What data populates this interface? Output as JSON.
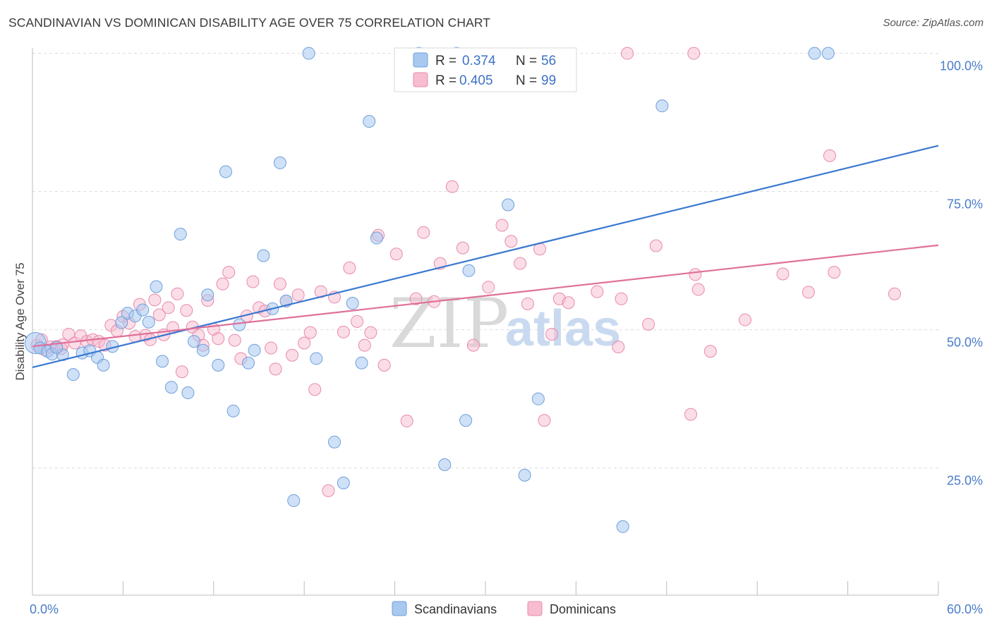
{
  "header": {
    "title": "SCANDINAVIAN VS DOMINICAN DISABILITY AGE OVER 75 CORRELATION CHART",
    "source": "Source: ZipAtlas.com"
  },
  "watermark": {
    "part1": "ZIP",
    "part2": "atlas"
  },
  "legend": {
    "r_label": "R =",
    "n_label": "N =",
    "rows": [
      {
        "r": "0.374",
        "n": "56"
      },
      {
        "r": "0.405",
        "n": "99"
      }
    ]
  },
  "chart_data": {
    "type": "scatter",
    "title": "SCANDINAVIAN VS DOMINICAN DISABILITY AGE OVER 75 CORRELATION CHART",
    "xlabel": "",
    "ylabel": "Disability Age Over 75",
    "xlim": [
      0,
      60
    ],
    "ylim": [
      2,
      102
    ],
    "x_tick_labels": [
      "0.0%",
      "60.0%"
    ],
    "y_ticks": [
      25,
      50,
      75,
      100
    ],
    "y_tick_labels": [
      "25.0%",
      "50.0%",
      "75.0%",
      "100.0%"
    ],
    "grid": true,
    "legend_position": "top-center",
    "series": [
      {
        "name": "Scandinavians",
        "color": "#a8c8f0",
        "edge": "#6f9fdc",
        "line_color": "#3a78d0",
        "r": 0.374,
        "n": 56,
        "trend": {
          "x": [
            0,
            60
          ],
          "y": [
            43.2,
            83.3
          ]
        },
        "points": [
          [
            0.2,
            47.6
          ],
          [
            0.5,
            46.7
          ],
          [
            1.0,
            46.1
          ],
          [
            1.3,
            45.6
          ],
          [
            2.0,
            45.5
          ],
          [
            2.7,
            41.9
          ],
          [
            3.3,
            45.8
          ],
          [
            3.8,
            46.2
          ],
          [
            4.3,
            45.0
          ],
          [
            4.7,
            43.6
          ],
          [
            5.3,
            47.0
          ],
          [
            5.9,
            51.3
          ],
          [
            6.3,
            53.0
          ],
          [
            6.8,
            52.5
          ],
          [
            7.3,
            53.6
          ],
          [
            7.7,
            51.4
          ],
          [
            8.2,
            57.8
          ],
          [
            8.6,
            44.3
          ],
          [
            9.2,
            39.6
          ],
          [
            9.8,
            67.3
          ],
          [
            10.3,
            38.6
          ],
          [
            10.7,
            47.9
          ],
          [
            11.3,
            46.3
          ],
          [
            11.6,
            56.3
          ],
          [
            12.3,
            43.6
          ],
          [
            12.8,
            78.6
          ],
          [
            13.3,
            35.3
          ],
          [
            13.7,
            50.9
          ],
          [
            14.3,
            44.0
          ],
          [
            14.7,
            46.3
          ],
          [
            15.3,
            63.4
          ],
          [
            15.9,
            53.8
          ],
          [
            16.4,
            80.2
          ],
          [
            16.8,
            55.2
          ],
          [
            17.3,
            19.1
          ],
          [
            18.3,
            100.0
          ],
          [
            18.8,
            44.8
          ],
          [
            20.0,
            29.7
          ],
          [
            20.6,
            22.3
          ],
          [
            21.2,
            54.8
          ],
          [
            21.8,
            44.0
          ],
          [
            22.3,
            87.7
          ],
          [
            22.8,
            66.6
          ],
          [
            25.6,
            100.0
          ],
          [
            27.3,
            25.6
          ],
          [
            28.1,
            100.0
          ],
          [
            28.7,
            33.6
          ],
          [
            28.9,
            60.7
          ],
          [
            31.5,
            72.6
          ],
          [
            33.5,
            37.5
          ],
          [
            32.6,
            23.7
          ],
          [
            39.1,
            14.4
          ],
          [
            41.7,
            90.5
          ],
          [
            51.8,
            100.0
          ],
          [
            52.7,
            100.0
          ],
          [
            1.6,
            46.8
          ]
        ]
      },
      {
        "name": "Dominicans",
        "color": "#f7bcd0",
        "edge": "#e88aab",
        "line_color": "#e0709a",
        "r": 0.405,
        "n": 99,
        "trend": {
          "x": [
            0,
            60
          ],
          "y": [
            47.0,
            65.3
          ]
        },
        "points": [
          [
            0.3,
            47.2
          ],
          [
            0.8,
            46.4
          ],
          [
            1.2,
            46.9
          ],
          [
            1.6,
            47.0
          ],
          [
            2.0,
            47.3
          ],
          [
            2.4,
            49.2
          ],
          [
            2.8,
            47.6
          ],
          [
            3.2,
            48.9
          ],
          [
            3.6,
            47.9
          ],
          [
            4.0,
            48.2
          ],
          [
            4.4,
            47.9
          ],
          [
            4.8,
            47.2
          ],
          [
            5.2,
            50.8
          ],
          [
            5.6,
            49.8
          ],
          [
            6.0,
            52.4
          ],
          [
            6.4,
            51.2
          ],
          [
            6.8,
            48.8
          ],
          [
            7.1,
            54.6
          ],
          [
            7.5,
            49.0
          ],
          [
            7.8,
            48.2
          ],
          [
            8.1,
            55.4
          ],
          [
            8.4,
            52.7
          ],
          [
            8.7,
            49.1
          ],
          [
            9.0,
            54.0
          ],
          [
            9.3,
            50.4
          ],
          [
            9.6,
            56.5
          ],
          [
            9.9,
            42.4
          ],
          [
            10.2,
            53.5
          ],
          [
            10.6,
            50.5
          ],
          [
            11.0,
            49.0
          ],
          [
            11.3,
            47.2
          ],
          [
            11.6,
            55.3
          ],
          [
            12.0,
            50.1
          ],
          [
            12.3,
            48.4
          ],
          [
            12.6,
            58.3
          ],
          [
            13.0,
            60.4
          ],
          [
            13.4,
            48.1
          ],
          [
            13.8,
            44.8
          ],
          [
            14.2,
            52.5
          ],
          [
            14.6,
            58.7
          ],
          [
            15.0,
            54.0
          ],
          [
            15.4,
            53.4
          ],
          [
            15.8,
            46.7
          ],
          [
            16.1,
            42.9
          ],
          [
            16.4,
            58.3
          ],
          [
            16.8,
            55.2
          ],
          [
            17.2,
            45.4
          ],
          [
            17.6,
            56.3
          ],
          [
            18.0,
            47.6
          ],
          [
            18.4,
            49.5
          ],
          [
            18.7,
            39.2
          ],
          [
            19.1,
            56.9
          ],
          [
            19.6,
            20.9
          ],
          [
            20.0,
            55.9
          ],
          [
            20.6,
            49.6
          ],
          [
            21.0,
            61.2
          ],
          [
            21.5,
            51.5
          ],
          [
            22.0,
            47.2
          ],
          [
            22.4,
            49.5
          ],
          [
            22.9,
            67.1
          ],
          [
            23.3,
            43.6
          ],
          [
            24.1,
            63.7
          ],
          [
            24.8,
            33.5
          ],
          [
            25.4,
            55.6
          ],
          [
            25.9,
            67.6
          ],
          [
            26.6,
            55.1
          ],
          [
            27.0,
            62.0
          ],
          [
            27.8,
            75.9
          ],
          [
            28.5,
            64.8
          ],
          [
            29.2,
            47.2
          ],
          [
            30.2,
            57.7
          ],
          [
            31.1,
            68.9
          ],
          [
            31.7,
            66.0
          ],
          [
            32.3,
            62.0
          ],
          [
            32.8,
            54.7
          ],
          [
            33.6,
            64.6
          ],
          [
            33.9,
            33.6
          ],
          [
            34.4,
            49.2
          ],
          [
            34.9,
            55.6
          ],
          [
            35.5,
            54.9
          ],
          [
            37.4,
            56.9
          ],
          [
            38.8,
            46.9
          ],
          [
            39.0,
            55.6
          ],
          [
            39.4,
            100.0
          ],
          [
            40.8,
            51.0
          ],
          [
            41.3,
            65.2
          ],
          [
            43.6,
            34.7
          ],
          [
            43.8,
            100.0
          ],
          [
            43.9,
            60.0
          ],
          [
            44.1,
            57.3
          ],
          [
            44.9,
            46.1
          ],
          [
            47.2,
            51.8
          ],
          [
            49.7,
            60.1
          ],
          [
            51.4,
            56.8
          ],
          [
            52.8,
            81.5
          ],
          [
            53.1,
            60.4
          ],
          [
            57.1,
            56.5
          ],
          [
            0.6,
            48.2
          ],
          [
            1.9,
            46.6
          ]
        ]
      }
    ]
  },
  "bottom_legend": {
    "items": [
      {
        "label": "Scandinavians"
      },
      {
        "label": "Dominicans"
      }
    ]
  }
}
